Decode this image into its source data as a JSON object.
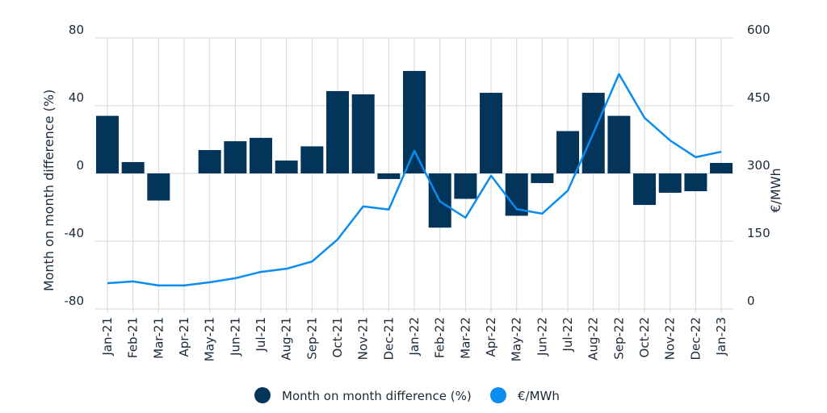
{
  "chart_data": {
    "type": "bar+line",
    "categories": [
      "Jan-21",
      "Feb-21",
      "Mar-21",
      "Apr-21",
      "May-21",
      "Jun-21",
      "Jul-21",
      "Aug-21",
      "Sep-21",
      "Oct-21",
      "Nov-21",
      "Dec-21",
      "Jan-22",
      "Feb-22",
      "Mar-22",
      "Apr-22",
      "May-22",
      "Jun-22",
      "Jul-22",
      "Aug-22",
      "Sep-22",
      "Oct-22",
      "Nov-22",
      "Dec-22",
      "Jan-23"
    ],
    "series": [
      {
        "name": "Month on month difference (%)",
        "type": "bar",
        "axis": "left",
        "color": "#03345a",
        "values": [
          34,
          6.7,
          -16,
          0,
          13.8,
          19,
          21,
          7.6,
          16,
          48.6,
          46.7,
          -3.3,
          60.5,
          -32,
          -15,
          47.6,
          -25,
          -5.7,
          25,
          47.6,
          34,
          -18.6,
          -11.4,
          -10.5,
          6.2
        ]
      },
      {
        "name": "€/MWh",
        "type": "line",
        "axis": "right",
        "color": "#0a8cf0",
        "values": [
          57,
          61,
          52,
          52,
          59,
          68,
          82,
          89,
          105,
          154,
          227,
          220,
          350,
          238,
          202,
          295,
          221,
          211,
          262,
          389,
          520,
          423,
          373,
          336,
          348
        ]
      }
    ],
    "ylabel": "Month on month difference (%)",
    "ylabel_right": "€/MWh",
    "ylim": [
      -80,
      80
    ],
    "ylim_right": [
      0,
      600
    ],
    "yticks": [
      80,
      40,
      0,
      -40,
      -80
    ],
    "yticks_right": [
      600,
      450,
      300,
      150,
      0
    ],
    "grid": true,
    "legend_position": "bottom"
  }
}
